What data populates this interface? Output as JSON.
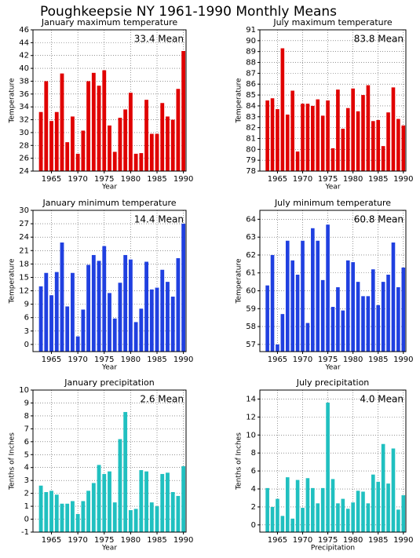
{
  "title": "Poughkeepsie NY  1961-1990 Monthly Means",
  "chart_data": [
    {
      "type": "bar",
      "title": "January maximum temperature",
      "annotation": "33.4 Mean",
      "ylabel": "Temperature",
      "xlabel": "Year",
      "color": "#e00000",
      "grid": true,
      "x": [
        1963,
        1964,
        1965,
        1966,
        1967,
        1968,
        1969,
        1970,
        1971,
        1972,
        1973,
        1974,
        1975,
        1976,
        1977,
        1978,
        1979,
        1980,
        1981,
        1982,
        1983,
        1984,
        1985,
        1986,
        1987,
        1988,
        1989,
        1990
      ],
      "values": [
        33.2,
        38.0,
        31.8,
        33.2,
        39.2,
        28.5,
        32.5,
        26.7,
        30.3,
        38.0,
        39.3,
        37.3,
        39.7,
        31.1,
        27.0,
        32.3,
        33.6,
        36.2,
        26.7,
        26.8,
        35.1,
        29.8,
        29.8,
        34.6,
        32.5,
        32.0,
        36.8,
        42.7
      ],
      "xlim": [
        1961.5,
        1990.5
      ],
      "xticks": [
        1965,
        1970,
        1975,
        1980,
        1985,
        1990
      ],
      "ylim": [
        24,
        46
      ],
      "yticks": [
        24,
        26,
        28,
        30,
        32,
        34,
        36,
        38,
        40,
        42,
        44,
        46
      ]
    },
    {
      "type": "bar",
      "title": "July maximum temperature",
      "annotation": "83.8 Mean",
      "ylabel": "Temperature",
      "xlabel": "Year",
      "color": "#e00000",
      "grid": true,
      "x": [
        1963,
        1964,
        1965,
        1966,
        1967,
        1968,
        1969,
        1970,
        1971,
        1972,
        1973,
        1974,
        1975,
        1976,
        1977,
        1978,
        1979,
        1980,
        1981,
        1982,
        1983,
        1984,
        1985,
        1986,
        1987,
        1988,
        1989,
        1990
      ],
      "values": [
        84.5,
        84.7,
        83.7,
        89.3,
        83.2,
        85.4,
        79.8,
        84.2,
        84.2,
        84.0,
        84.6,
        83.1,
        84.5,
        80.1,
        85.5,
        81.9,
        83.8,
        85.6,
        83.5,
        85.0,
        85.9,
        82.6,
        82.7,
        80.3,
        83.4,
        85.7,
        82.8,
        82.2
      ],
      "xlim": [
        1961.5,
        1990.5
      ],
      "xticks": [
        1965,
        1970,
        1975,
        1980,
        1985,
        1990
      ],
      "ylim": [
        78,
        91
      ],
      "yticks": [
        78,
        79,
        80,
        81,
        82,
        83,
        84,
        85,
        86,
        87,
        88,
        89,
        90,
        91
      ]
    },
    {
      "type": "bar",
      "title": "January minimum temperature",
      "annotation": "14.4 Mean",
      "ylabel": "Temperature",
      "xlabel": "Year",
      "color": "#2040e0",
      "grid": true,
      "x": [
        1963,
        1964,
        1965,
        1966,
        1967,
        1968,
        1969,
        1970,
        1971,
        1972,
        1973,
        1974,
        1975,
        1976,
        1977,
        1978,
        1979,
        1980,
        1981,
        1982,
        1983,
        1984,
        1985,
        1986,
        1987,
        1988,
        1989,
        1990
      ],
      "values": [
        13.0,
        16.0,
        11.0,
        16.2,
        22.8,
        8.5,
        16.0,
        1.8,
        7.8,
        17.8,
        20.0,
        18.7,
        22.0,
        11.5,
        5.8,
        13.8,
        20.0,
        19.0,
        5.0,
        8.0,
        18.5,
        12.3,
        12.7,
        16.7,
        14.0,
        10.7,
        19.3,
        27.0
      ],
      "xlim": [
        1961.5,
        1990.5
      ],
      "xticks": [
        1965,
        1970,
        1975,
        1980,
        1985,
        1990
      ],
      "ylim": [
        -1.6,
        30
      ],
      "yticks": [
        0,
        3,
        6,
        9,
        12,
        15,
        18,
        21,
        24,
        27,
        30
      ]
    },
    {
      "type": "bar",
      "title": "July minimum temperature",
      "annotation": "60.8 Mean",
      "ylabel": "Temperature",
      "xlabel": "Year",
      "color": "#2040e0",
      "grid": true,
      "x": [
        1963,
        1964,
        1965,
        1966,
        1967,
        1968,
        1969,
        1970,
        1971,
        1972,
        1973,
        1974,
        1975,
        1976,
        1977,
        1978,
        1979,
        1980,
        1981,
        1982,
        1983,
        1984,
        1985,
        1986,
        1987,
        1988,
        1989,
        1990
      ],
      "values": [
        60.3,
        62.0,
        57.0,
        58.7,
        62.8,
        61.7,
        60.9,
        62.8,
        58.2,
        63.5,
        62.8,
        60.6,
        63.7,
        59.1,
        60.2,
        58.9,
        61.7,
        61.6,
        60.5,
        59.7,
        59.7,
        61.2,
        59.2,
        60.5,
        60.9,
        62.7,
        60.2,
        61.3
      ],
      "xlim": [
        1961.5,
        1990.5
      ],
      "xticks": [
        1965,
        1970,
        1975,
        1980,
        1985,
        1990
      ],
      "ylim": [
        56.6,
        64.5
      ],
      "yticks": [
        57,
        58,
        59,
        60,
        61,
        62,
        63,
        64
      ]
    },
    {
      "type": "bar",
      "title": "January precipitation",
      "annotation": "2.6 Mean",
      "ylabel": "Tenths of Inches",
      "xlabel": "Year",
      "color": "#20c0c0",
      "grid": true,
      "x": [
        1963,
        1964,
        1965,
        1966,
        1967,
        1968,
        1969,
        1970,
        1971,
        1972,
        1973,
        1974,
        1975,
        1976,
        1977,
        1978,
        1979,
        1980,
        1981,
        1982,
        1983,
        1984,
        1985,
        1986,
        1987,
        1988,
        1989,
        1990
      ],
      "values": [
        2.6,
        2.1,
        2.2,
        1.9,
        1.2,
        1.2,
        1.4,
        0.4,
        1.4,
        2.2,
        2.8,
        4.2,
        3.5,
        3.7,
        1.3,
        6.2,
        8.3,
        0.7,
        0.8,
        3.8,
        3.7,
        1.3,
        1.0,
        3.5,
        3.6,
        2.1,
        1.8,
        4.1
      ],
      "xlim": [
        1961.5,
        1990.5
      ],
      "xticks": [
        1965,
        1970,
        1975,
        1980,
        1985,
        1990
      ],
      "ylim": [
        -1,
        10
      ],
      "yticks": [
        -1,
        0,
        1,
        2,
        3,
        4,
        5,
        6,
        7,
        8,
        9,
        10
      ]
    },
    {
      "type": "bar",
      "title": "July precipitation",
      "annotation": "4.0 Mean",
      "ylabel": "Tenths of Inches",
      "xlabel": "Precipitation",
      "color": "#20c0c0",
      "grid": true,
      "x": [
        1963,
        1964,
        1965,
        1966,
        1967,
        1968,
        1969,
        1970,
        1971,
        1972,
        1973,
        1974,
        1975,
        1976,
        1977,
        1978,
        1979,
        1980,
        1981,
        1982,
        1983,
        1984,
        1985,
        1986,
        1987,
        1988,
        1989,
        1990
      ],
      "values": [
        4.1,
        2.0,
        2.9,
        1.0,
        5.3,
        0.7,
        5.0,
        1.9,
        5.2,
        4.1,
        2.4,
        4.1,
        13.6,
        5.1,
        2.4,
        2.9,
        1.8,
        2.5,
        3.8,
        3.7,
        2.4,
        5.6,
        4.8,
        9.0,
        4.6,
        8.5,
        1.7,
        3.3
      ],
      "xlim": [
        1961.5,
        1990.5
      ],
      "xticks": [
        1965,
        1970,
        1975,
        1980,
        1985,
        1990
      ],
      "ylim": [
        -0.8,
        15
      ],
      "yticks": [
        0,
        2,
        4,
        6,
        8,
        10,
        12,
        14
      ]
    }
  ]
}
